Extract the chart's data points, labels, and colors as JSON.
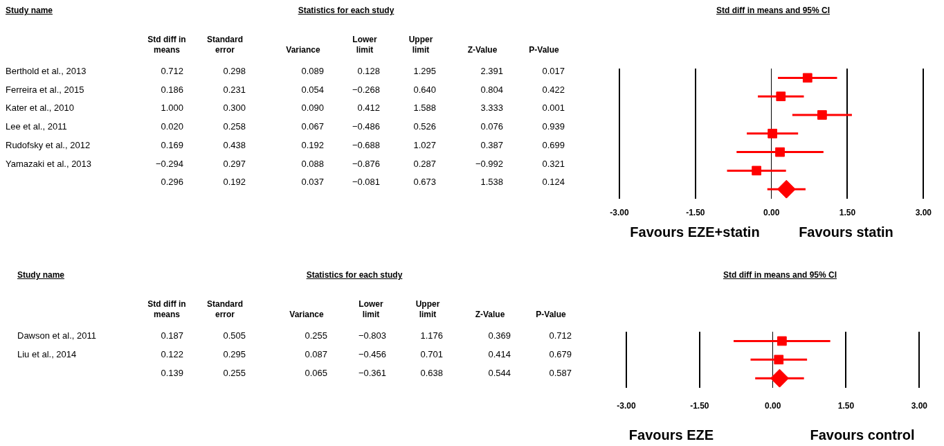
{
  "chart_data": [
    {
      "type": "other",
      "title": "Statistics for each study",
      "ylabel": "Study name",
      "categories": [
        "Std diff in means",
        "Standard error",
        "Variance",
        "Lower limit",
        "Upper limit",
        "Z-Value",
        "P-Value"
      ],
      "y_categories": [
        "Berthold et al., 2013",
        "Ferreira et al., 2015",
        "Kater et al., 2010",
        "Lee et al., 2011",
        "Rudofsky et al., 2012",
        "Yamazaki et al., 2013",
        null
      ],
      "cell_labels": [
        [
          "0.712",
          "0.298",
          "0.089",
          "0.128",
          "1.295",
          "2.391",
          "0.017"
        ],
        [
          "0.186",
          "0.231",
          "0.054",
          "−0.268",
          "0.640",
          "0.804",
          "0.422"
        ],
        [
          "1.000",
          "0.300",
          "0.090",
          "0.412",
          "1.588",
          "3.333",
          "0.001"
        ],
        [
          "0.020",
          "0.258",
          "0.067",
          "−0.486",
          "0.526",
          "0.076",
          "0.939"
        ],
        [
          "0.169",
          "0.438",
          "0.192",
          "−0.688",
          "1.027",
          "0.387",
          "0.699"
        ],
        [
          "−0.294",
          "0.297",
          "0.088",
          "−0.876",
          "0.287",
          "−0.992",
          "0.321"
        ],
        [
          "0.296",
          "0.192",
          "0.037",
          "−0.081",
          "0.673",
          "1.538",
          "0.124"
        ]
      ]
    },
    {
      "type": "scatter",
      "title": "Std diff in means and 95% CI",
      "orientation": "horizontal",
      "categories": [
        null,
        null,
        null,
        null,
        null,
        null,
        null
      ],
      "series": [
        {
          "type": "scatter",
          "marker": "square",
          "color": "#ff0000",
          "values": [
            0.712,
            0.186,
            1.0,
            0.02,
            0.169,
            -0.294,
            null
          ],
          "errors": [
            [
              0.128,
              1.295
            ],
            [
              -0.268,
              0.64
            ],
            [
              0.412,
              1.588
            ],
            [
              -0.486,
              0.526
            ],
            [
              -0.688,
              1.027
            ],
            [
              -0.876,
              0.287
            ],
            null
          ]
        },
        {
          "type": "scatter",
          "marker": "diamond",
          "color": "#ff0000",
          "values": [
            null,
            null,
            null,
            null,
            null,
            null,
            0.296
          ],
          "errors": [
            null,
            null,
            null,
            null,
            null,
            null,
            [
              -0.081,
              0.673
            ]
          ]
        }
      ],
      "xlim": [
        -3,
        3
      ],
      "xticks": [
        {
          "value": -3,
          "label": "-3.00"
        },
        {
          "value": -1.5,
          "label": "-1.50"
        },
        {
          "value": 0,
          "label": "0.00"
        },
        {
          "value": 1.5,
          "label": "1.50"
        },
        {
          "value": 3,
          "label": "3.00"
        }
      ],
      "grid": "x",
      "legend": false,
      "annotations": [
        "Favours EZE+statin",
        "Favours statin"
      ]
    },
    {
      "type": "other",
      "title": "Statistics for each study",
      "ylabel": "Study name",
      "categories": [
        "Std diff in means",
        "Standard error",
        "Variance",
        "Lower limit",
        "Upper limit",
        "Z-Value",
        "P-Value"
      ],
      "y_categories": [
        "Dawson et al., 2011",
        "Liu et al., 2014",
        null
      ],
      "cell_labels": [
        [
          "0.187",
          "0.505",
          "0.255",
          "−0.803",
          "1.176",
          "0.369",
          "0.712"
        ],
        [
          "0.122",
          "0.295",
          "0.087",
          "−0.456",
          "0.701",
          "0.414",
          "0.679"
        ],
        [
          "0.139",
          "0.255",
          "0.065",
          "−0.361",
          "0.638",
          "0.544",
          "0.587"
        ]
      ]
    },
    {
      "type": "scatter",
      "title": "Std diff in means and 95% CI",
      "orientation": "horizontal",
      "categories": [
        null,
        null,
        null
      ],
      "series": [
        {
          "type": "scatter",
          "marker": "square",
          "color": "#ff0000",
          "values": [
            0.187,
            0.122,
            null
          ],
          "errors": [
            [
              -0.803,
              1.176
            ],
            [
              -0.456,
              0.701
            ],
            null
          ]
        },
        {
          "type": "scatter",
          "marker": "diamond",
          "color": "#ff0000",
          "values": [
            null,
            null,
            0.139
          ],
          "errors": [
            null,
            null,
            [
              -0.361,
              0.638
            ]
          ]
        }
      ],
      "xlim": [
        -3,
        3
      ],
      "xticks": [
        {
          "value": -3,
          "label": "-3.00"
        },
        {
          "value": -1.5,
          "label": "-1.50"
        },
        {
          "value": 0,
          "label": "0.00"
        },
        {
          "value": 1.5,
          "label": "1.50"
        },
        {
          "value": 3,
          "label": "3.00"
        }
      ],
      "grid": "x",
      "legend": false,
      "annotations": [
        "Favours EZE",
        "Favours control"
      ]
    }
  ]
}
